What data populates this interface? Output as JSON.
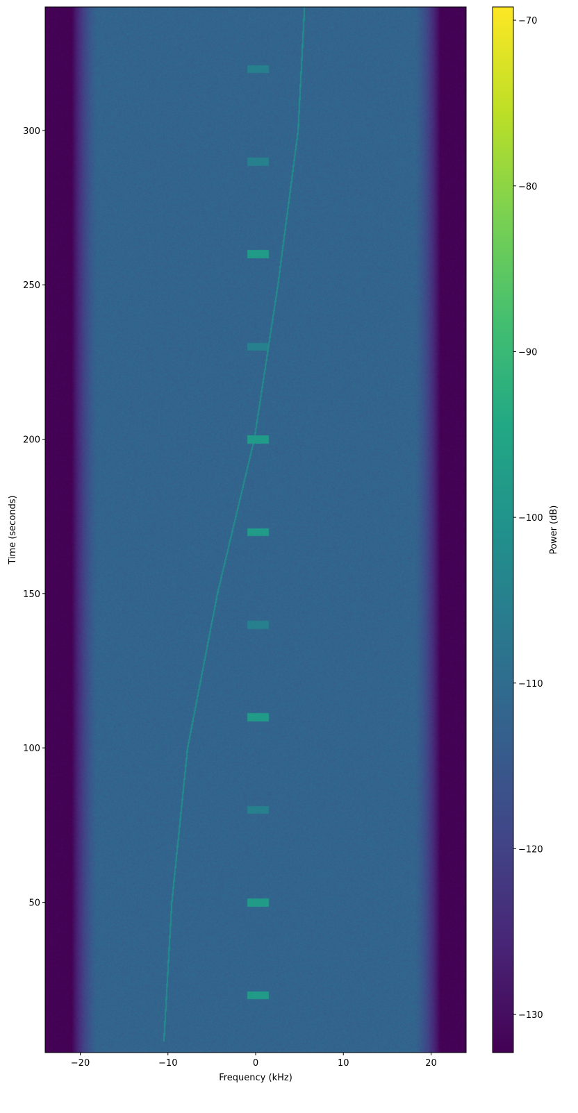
{
  "chart_data": {
    "type": "heatmap",
    "title": "",
    "xlabel": "Frequency (kHz)",
    "ylabel": "Time (seconds)",
    "xlim": [
      -24,
      24
    ],
    "ylim": [
      1.3,
      340
    ],
    "xticks": [
      -20,
      -10,
      0,
      10,
      20
    ],
    "xtick_labels": [
      "−20",
      "−10",
      "0",
      "10",
      "20"
    ],
    "yticks": [
      50,
      100,
      150,
      200,
      250,
      300
    ],
    "ytick_labels": [
      "50",
      "100",
      "150",
      "200",
      "250",
      "300"
    ],
    "colorbar": {
      "label": "Power (dB)",
      "colormap": "viridis",
      "range": [
        -132.3,
        -69.2
      ],
      "ticks": [
        -70,
        -80,
        -90,
        -100,
        -110,
        -120,
        -130
      ],
      "tick_labels": [
        "−70",
        "−80",
        "−90",
        "−100",
        "−110",
        "−120",
        "−130"
      ]
    },
    "noise_floor_db": -112,
    "band_edge_db": -132,
    "passband_khz": [
      -21,
      21
    ],
    "chirp_trace": {
      "time_s": [
        5,
        50,
        100,
        150,
        200,
        250,
        300,
        338
      ],
      "freq_khz": [
        -10.5,
        -9.6,
        -7.8,
        -4.4,
        -0.2,
        2.5,
        4.8,
        5.5
      ]
    },
    "bursts": {
      "freq_khz": [
        -1,
        1.5
      ],
      "time_s": [
        20,
        50,
        80,
        110,
        140,
        170,
        200,
        230,
        260,
        290,
        320
      ],
      "strength": [
        "strong",
        "strong",
        "weak",
        "strong",
        "weak",
        "strong",
        "strong",
        "weak",
        "strong",
        "weak",
        "weak"
      ]
    }
  }
}
